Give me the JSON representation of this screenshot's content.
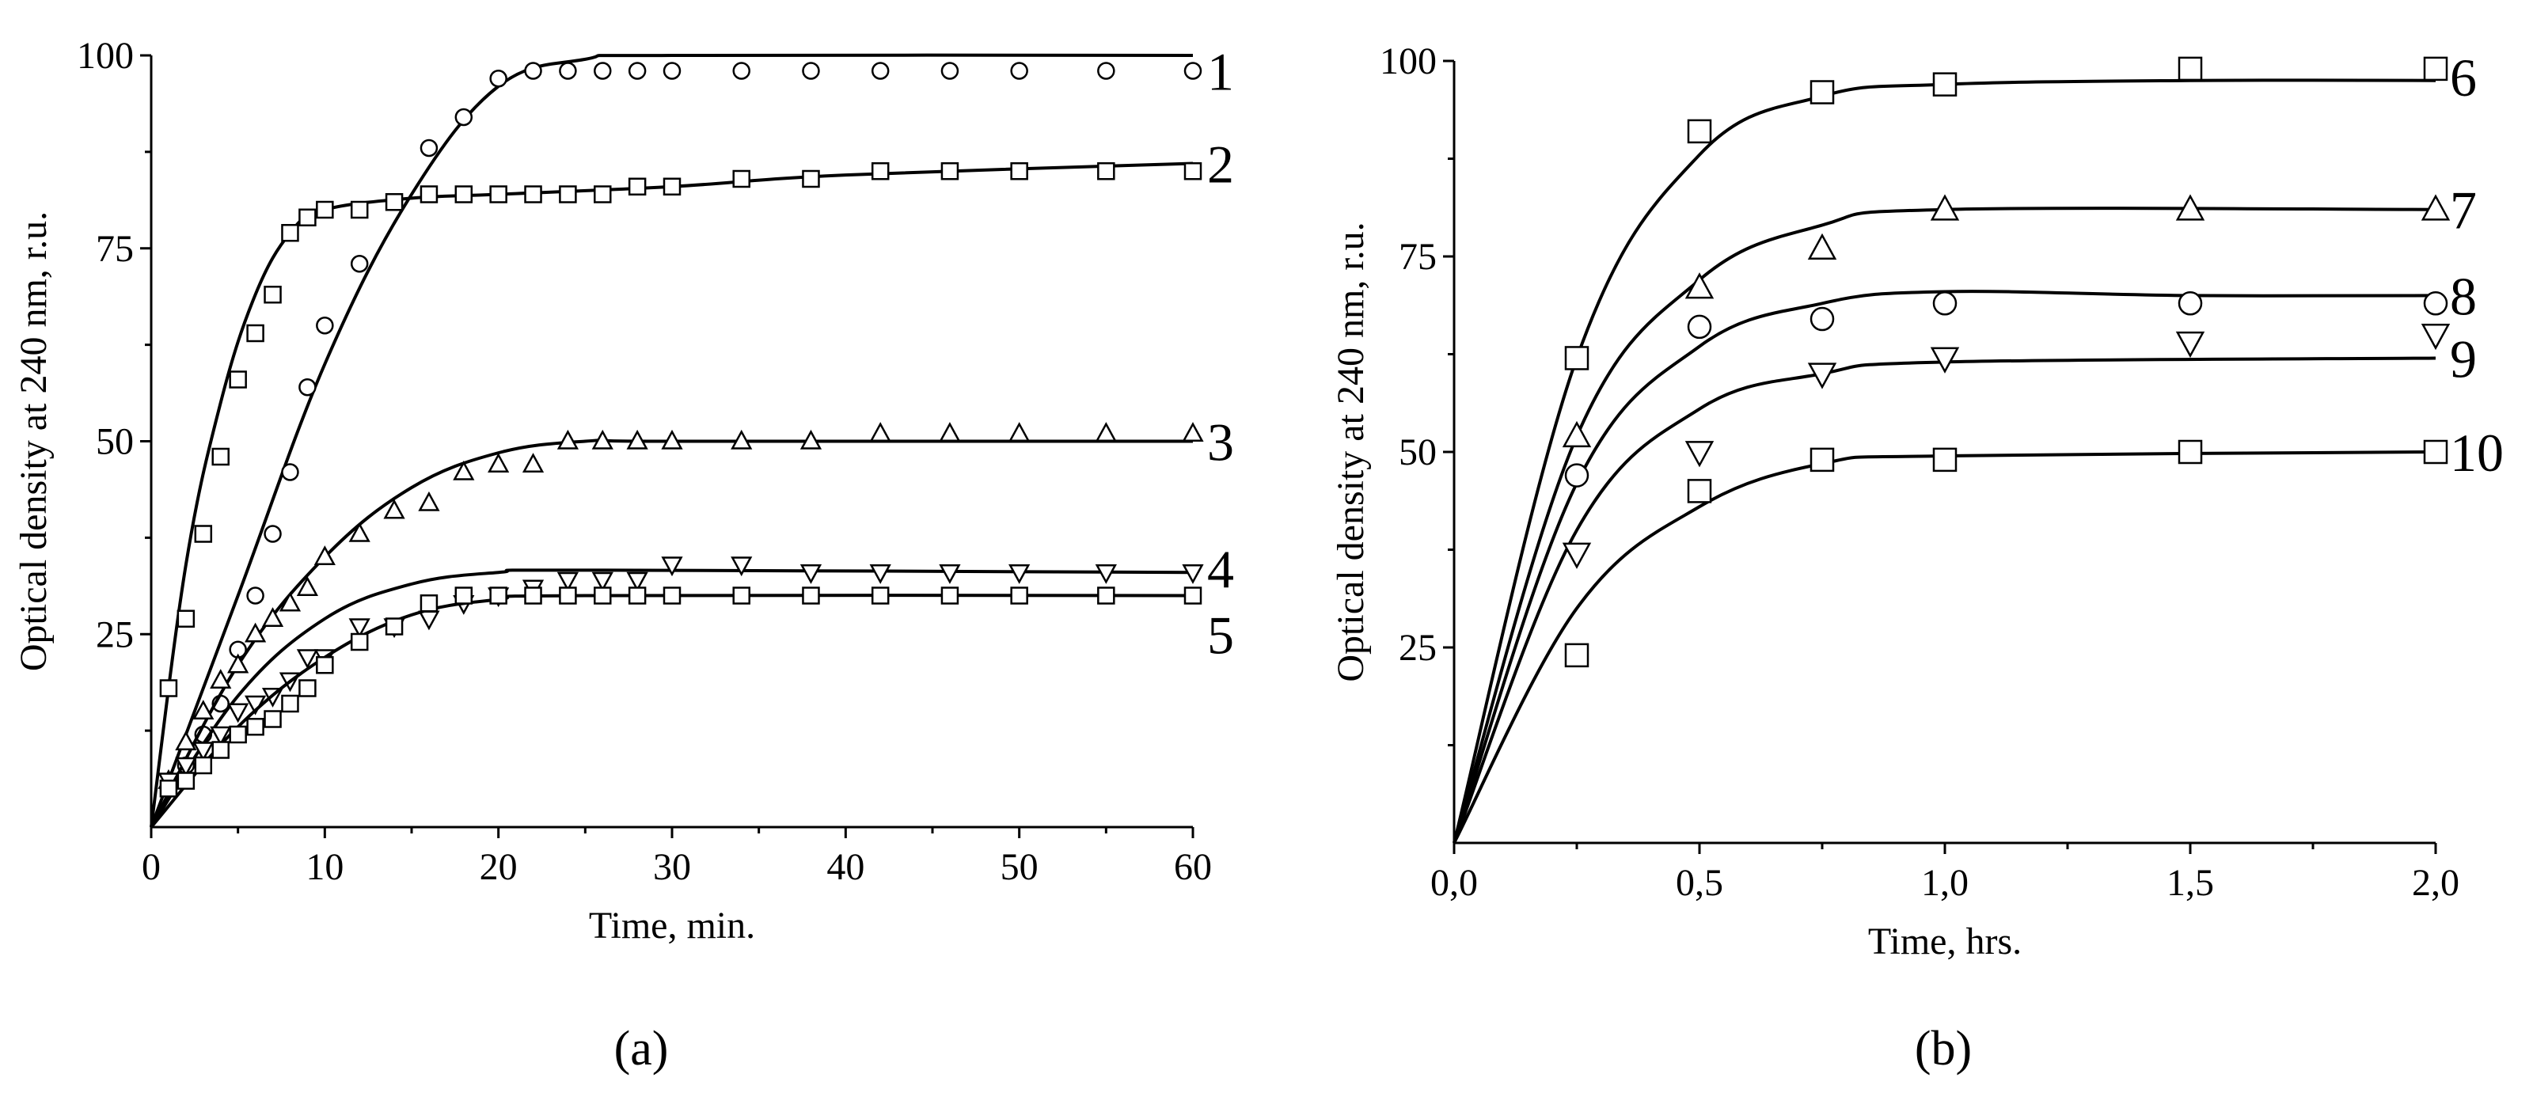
{
  "chart_data": [
    {
      "type": "scatter",
      "title": "",
      "xlabel": "Time, min.",
      "ylabel": "Optical density at 240 nm, r.u.",
      "xlim": [
        0,
        60
      ],
      "ylim": [
        0,
        100
      ],
      "xticks": [
        "0",
        "10",
        "20",
        "30",
        "40",
        "50",
        "60"
      ],
      "yticks": [
        "25",
        "50",
        "75",
        "100"
      ],
      "panel_label": "(a)",
      "series": [
        {
          "name": "1",
          "marker": "circle",
          "x": [
            1,
            2,
            3,
            4,
            5,
            6,
            7,
            8,
            9,
            10,
            12,
            16,
            18,
            20,
            22,
            24,
            26,
            28,
            30,
            34,
            38,
            42,
            46,
            50,
            55,
            60
          ],
          "y": [
            5,
            8,
            12,
            16,
            23,
            30,
            38,
            46,
            57,
            65,
            73,
            88,
            92,
            97,
            98,
            98,
            98,
            98,
            98,
            98,
            98,
            98,
            98,
            98,
            98,
            98
          ],
          "fit": [
            [
              0,
              0
            ],
            [
              5,
              30
            ],
            [
              10,
              60
            ],
            [
              15,
              82
            ],
            [
              20,
              96
            ],
            [
              25,
              99.5
            ],
            [
              30,
              100
            ],
            [
              60,
              100
            ]
          ]
        },
        {
          "name": "2",
          "marker": "square",
          "x": [
            1,
            2,
            3,
            4,
            5,
            6,
            7,
            8,
            9,
            10,
            12,
            14,
            16,
            18,
            20,
            22,
            24,
            26,
            28,
            30,
            34,
            38,
            42,
            46,
            50,
            55,
            60
          ],
          "y": [
            18,
            27,
            38,
            48,
            58,
            64,
            69,
            77,
            79,
            80,
            80,
            81,
            82,
            82,
            82,
            82,
            82,
            82,
            83,
            83,
            84,
            84,
            85,
            85,
            85,
            85,
            85
          ],
          "fit": [
            [
              0,
              0
            ],
            [
              2,
              34
            ],
            [
              4,
              55
            ],
            [
              6,
              69
            ],
            [
              8,
              77
            ],
            [
              10,
              80
            ],
            [
              15,
              81.5
            ],
            [
              20,
              82
            ],
            [
              30,
              83
            ],
            [
              40,
              84.5
            ],
            [
              60,
              86
            ]
          ]
        },
        {
          "name": "3",
          "marker": "triangle-up",
          "x": [
            1,
            2,
            3,
            4,
            5,
            6,
            7,
            8,
            9,
            10,
            12,
            14,
            16,
            18,
            20,
            22,
            24,
            26,
            28,
            30,
            34,
            38,
            42,
            46,
            50,
            55,
            60
          ],
          "y": [
            6,
            11,
            15,
            19,
            21,
            25,
            27,
            29,
            31,
            35,
            38,
            41,
            42,
            46,
            47,
            47,
            50,
            50,
            50,
            50,
            50,
            50,
            51,
            51,
            51,
            51,
            51
          ],
          "fit": [
            [
              0,
              0
            ],
            [
              5,
              21
            ],
            [
              10,
              35
            ],
            [
              15,
              44
            ],
            [
              20,
              48.5
            ],
            [
              25,
              50
            ],
            [
              30,
              50
            ],
            [
              60,
              50
            ]
          ]
        },
        {
          "name": "4",
          "marker": "triangle-down",
          "x": [
            1,
            2,
            3,
            4,
            5,
            6,
            7,
            8,
            9,
            10,
            12,
            14,
            16,
            18,
            20,
            22,
            24,
            26,
            28,
            30,
            34,
            38,
            42,
            46,
            50,
            55,
            60
          ],
          "y": [
            6,
            8,
            10,
            12,
            15,
            16,
            17,
            19,
            22,
            22,
            26,
            26,
            27,
            29,
            30,
            31,
            32,
            32,
            32,
            34,
            34,
            33,
            33,
            33,
            33,
            33,
            33
          ],
          "fit": [
            [
              0,
              0
            ],
            [
              5,
              17
            ],
            [
              10,
              27
            ],
            [
              15,
              31.5
            ],
            [
              20,
              33
            ],
            [
              25,
              33.3
            ],
            [
              60,
              33
            ]
          ]
        },
        {
          "name": "5",
          "marker": "square",
          "x": [
            1,
            2,
            3,
            4,
            5,
            6,
            7,
            8,
            9,
            10,
            12,
            14,
            16,
            18,
            20,
            22,
            24,
            26,
            28,
            30,
            34,
            38,
            42,
            46,
            50,
            55,
            60
          ],
          "y": [
            5,
            6,
            8,
            10,
            12,
            13,
            14,
            16,
            18,
            21,
            24,
            26,
            29,
            30,
            30,
            30,
            30,
            30,
            30,
            30,
            30,
            30,
            30,
            30,
            30,
            30,
            30
          ],
          "fit": [
            [
              0,
              0
            ],
            [
              5,
              13
            ],
            [
              10,
              22
            ],
            [
              15,
              27.5
            ],
            [
              20,
              29.5
            ],
            [
              25,
              30
            ],
            [
              60,
              30
            ]
          ]
        }
      ]
    },
    {
      "type": "scatter",
      "title": "",
      "xlabel": "Time, hrs.",
      "ylabel": "Optical density at 240 nm, r.u.",
      "xlim": [
        0,
        2
      ],
      "ylim": [
        0,
        100
      ],
      "xticks": [
        "0,0",
        "0,5",
        "1,0",
        "1,5",
        "2,0"
      ],
      "yticks": [
        "25",
        "50",
        "75",
        "100"
      ],
      "panel_label": "(b)",
      "series": [
        {
          "name": "6",
          "marker": "square",
          "x": [
            0.25,
            0.5,
            0.75,
            1.0,
            1.5,
            2.0
          ],
          "y": [
            62,
            91,
            96,
            97,
            99,
            99
          ],
          "fit": [
            [
              0,
              0
            ],
            [
              0.25,
              62
            ],
            [
              0.5,
              88
            ],
            [
              0.75,
              95.5
            ],
            [
              1.0,
              97
            ],
            [
              1.5,
              97.5
            ],
            [
              2.0,
              97.5
            ]
          ]
        },
        {
          "name": "7",
          "marker": "triangle-up",
          "x": [
            0.25,
            0.5,
            0.75,
            1.0,
            1.5,
            2.0
          ],
          "y": [
            52,
            71,
            76,
            81,
            81,
            81
          ],
          "fit": [
            [
              0,
              0
            ],
            [
              0.25,
              52
            ],
            [
              0.5,
              72
            ],
            [
              0.75,
              79
            ],
            [
              1.0,
              81
            ],
            [
              2.0,
              81
            ]
          ]
        },
        {
          "name": "8",
          "marker": "circle",
          "x": [
            0.25,
            0.5,
            0.75,
            1.0,
            1.5,
            2.0
          ],
          "y": [
            47,
            66,
            67,
            69,
            69,
            69
          ],
          "fit": [
            [
              0,
              0
            ],
            [
              0.25,
              46
            ],
            [
              0.5,
              63.5
            ],
            [
              0.75,
              69
            ],
            [
              1.0,
              70.5
            ],
            [
              1.5,
              70
            ],
            [
              2.0,
              70
            ]
          ]
        },
        {
          "name": "9",
          "marker": "triangle-down",
          "x": [
            0.25,
            0.5,
            0.75,
            1.0,
            1.5,
            2.0
          ],
          "y": [
            37,
            50,
            60,
            62,
            64,
            65
          ],
          "fit": [
            [
              0,
              0
            ],
            [
              0.25,
              40
            ],
            [
              0.5,
              55.5
            ],
            [
              0.75,
              60
            ],
            [
              1.0,
              61.5
            ],
            [
              2.0,
              62
            ]
          ]
        },
        {
          "name": "10",
          "marker": "square",
          "x": [
            0.25,
            0.5,
            0.75,
            1.0,
            1.5,
            2.0
          ],
          "y": [
            24,
            45,
            49,
            49,
            50,
            50
          ],
          "fit": [
            [
              0,
              0
            ],
            [
              0.25,
              30
            ],
            [
              0.5,
              43
            ],
            [
              0.75,
              48.5
            ],
            [
              1.0,
              49.5
            ],
            [
              2.0,
              50
            ]
          ]
        }
      ]
    }
  ]
}
